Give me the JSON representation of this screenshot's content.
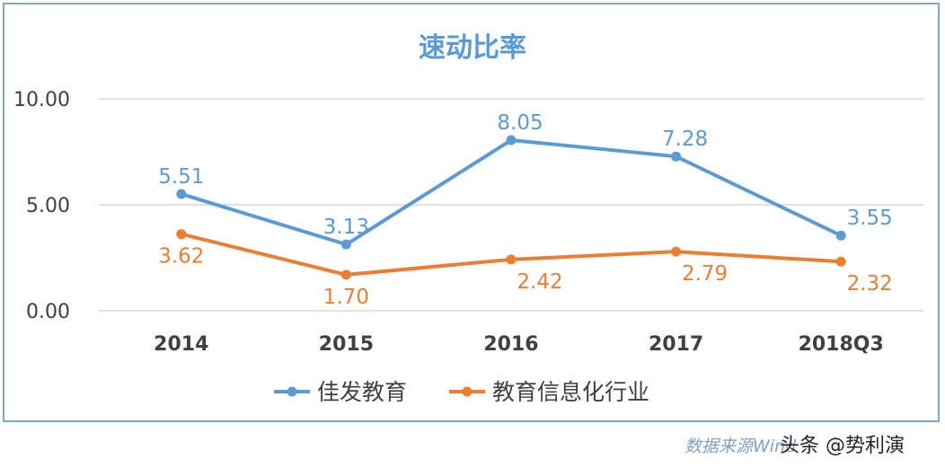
{
  "chart_data": {
    "type": "line",
    "title": "速动比率",
    "categories": [
      "2014",
      "2015",
      "2016",
      "2017",
      "2018Q3"
    ],
    "ylim": [
      0,
      10
    ],
    "yticks": [
      "0.00",
      "5.00",
      "10.00"
    ],
    "grid": true,
    "legend_position": "bottom",
    "series": [
      {
        "name": "佳发教育",
        "color": "#5b9bd5",
        "values": [
          5.51,
          3.13,
          8.05,
          7.28,
          3.55
        ],
        "labels": [
          "5.51",
          "3.13",
          "8.05",
          "7.28",
          "3.55"
        ]
      },
      {
        "name": "教育信息化行业",
        "color": "#ed7d31",
        "values": [
          3.62,
          1.7,
          2.42,
          2.79,
          2.32
        ],
        "labels": [
          "3.62",
          "1.70",
          "2.42",
          "2.79",
          "2.32"
        ]
      }
    ]
  },
  "source_note": "数据来源Wind",
  "watermark": "头条 @势利演"
}
